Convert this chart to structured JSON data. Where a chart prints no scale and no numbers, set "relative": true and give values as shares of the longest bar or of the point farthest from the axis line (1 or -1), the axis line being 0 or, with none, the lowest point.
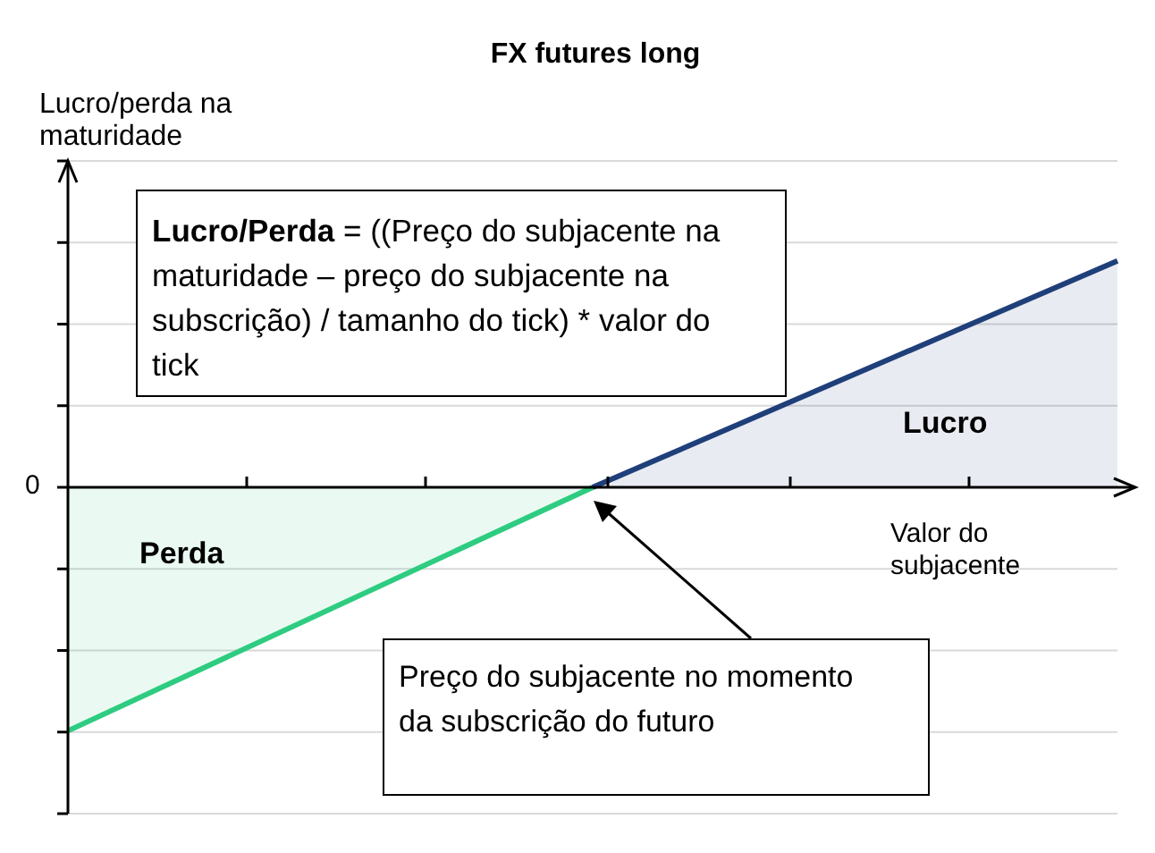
{
  "chart_data": {
    "type": "area",
    "title": "FX futures long",
    "xlabel": "Valor do subjacente",
    "ylabel": "Lucro/perda na maturidade",
    "relative": true,
    "grid": "y",
    "categories": [
      null,
      null,
      null
    ],
    "series": [
      {
        "color": "#2ecc80",
        "values": [
          -1,
          0,
          null
        ]
      },
      {
        "color": "#1f3f7a",
        "values": [
          null,
          0,
          0.93
        ]
      }
    ],
    "annotations": [
      "Lucro/Perda",
      "= ((Preço do subjacente na maturidade – preço do subjacente na subscrição) / tamanho do tick) * valor do tick",
      "Lucro",
      "Perda",
      "Preço do subjacente no momento da subscrição do futuro",
      "0"
    ]
  }
}
